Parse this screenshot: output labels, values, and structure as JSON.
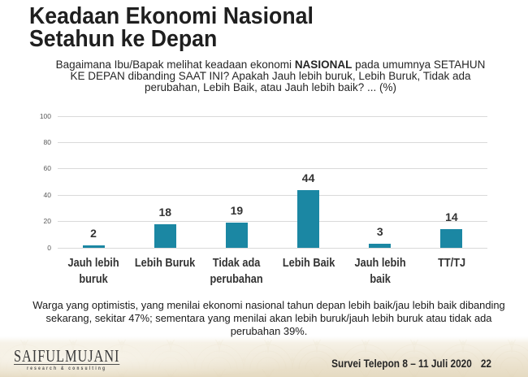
{
  "title": {
    "line1": "Keadaan Ekonomi Nasional",
    "line2": "Setahun ke Depan"
  },
  "question": {
    "line1_pre": "Bagaimana Ibu/Bapak melihat keadaan ekonomi ",
    "line1_bold": "NASIONAL",
    "line1_post": " pada umumnya SETAHUN",
    "line2": "KE DEPAN dibanding SAAT INI? Apakah Jauh lebih buruk, Lebih Buruk, Tidak ada",
    "line3": "perubahan, Lebih Baik, atau Jauh lebih baik? ... (%)"
  },
  "chart_data": {
    "type": "bar",
    "categories": [
      "Jauh lebih\nburuk",
      "Lebih Buruk",
      "Tidak ada\nperubahan",
      "Lebih Baik",
      "Jauh lebih\nbaik",
      "TT/TJ"
    ],
    "values": [
      2,
      18,
      19,
      44,
      3,
      14
    ],
    "title": "",
    "xlabel": "",
    "ylabel": "",
    "ylim": [
      0,
      100
    ],
    "yticks": [
      0,
      20,
      40,
      60,
      80,
      100
    ],
    "bar_color": "#1b87a3",
    "grid": true,
    "legend": false
  },
  "summary": {
    "line1": "Warga yang optimistis, yang menilai ekonomi nasional tahun depan lebih baik/jau lebih baik dibanding",
    "line2": "sekarang, sekitar 47%; sementara yang menilai akan lebih buruk/jauh lebih buruk atau tidak ada",
    "line3": "perubahan 39%."
  },
  "footer": {
    "logo_text": "SAIFULMUJANI",
    "logo_subtext": "research & consulting",
    "source_label": "Survei Telepon 8 – 11 Juli 2020",
    "page_number": "22"
  },
  "colors": {
    "bar": "#1b87a3",
    "gridline": "#d9d9d9",
    "title_text": "#1f1f1f",
    "body_text": "#262626",
    "band_light": "#f2ecdd",
    "band_dark": "#e3d7bd"
  }
}
